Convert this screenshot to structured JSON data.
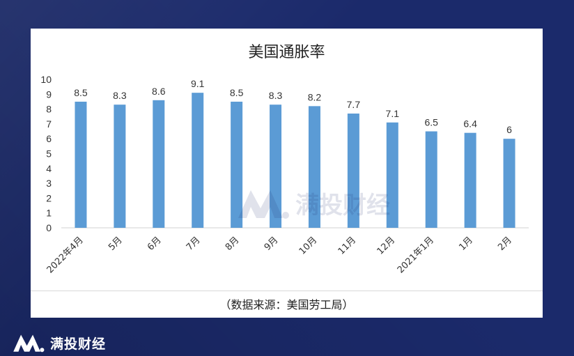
{
  "chart_data": {
    "type": "bar",
    "title": "美国通胀率",
    "categories": [
      "2022年4月",
      "5月",
      "6月",
      "7月",
      "8月",
      "9月",
      "10月",
      "11月",
      "12月",
      "2021年1月",
      "1月",
      "2月"
    ],
    "values": [
      8.5,
      8.3,
      8.6,
      9.1,
      8.5,
      8.3,
      8.2,
      7.7,
      7.1,
      6.5,
      6.4,
      6
    ],
    "value_labels": [
      "8.5",
      "8.3",
      "8.6",
      "9.1",
      "8.5",
      "8.3",
      "8.2",
      "7.7",
      "7.1",
      "6.5",
      "6.4",
      "6"
    ],
    "ylim": [
      0,
      10
    ],
    "yticks": [
      "0",
      "1",
      "2",
      "3",
      "4",
      "5",
      "6",
      "7",
      "8",
      "9",
      "10"
    ],
    "xlabel": "",
    "ylabel": "",
    "grid": false,
    "bar_color": "#5b9bd5"
  },
  "source_note": "（数据来源：美国劳工局）",
  "watermark": {
    "icon": "brand-logo-icon",
    "text": "满投财经"
  },
  "brand": {
    "icon": "brand-logo-icon",
    "name": "满投财经"
  },
  "colors": {
    "background": "#1b2a6b",
    "card": "#ffffff",
    "bar": "#5b9bd5"
  }
}
